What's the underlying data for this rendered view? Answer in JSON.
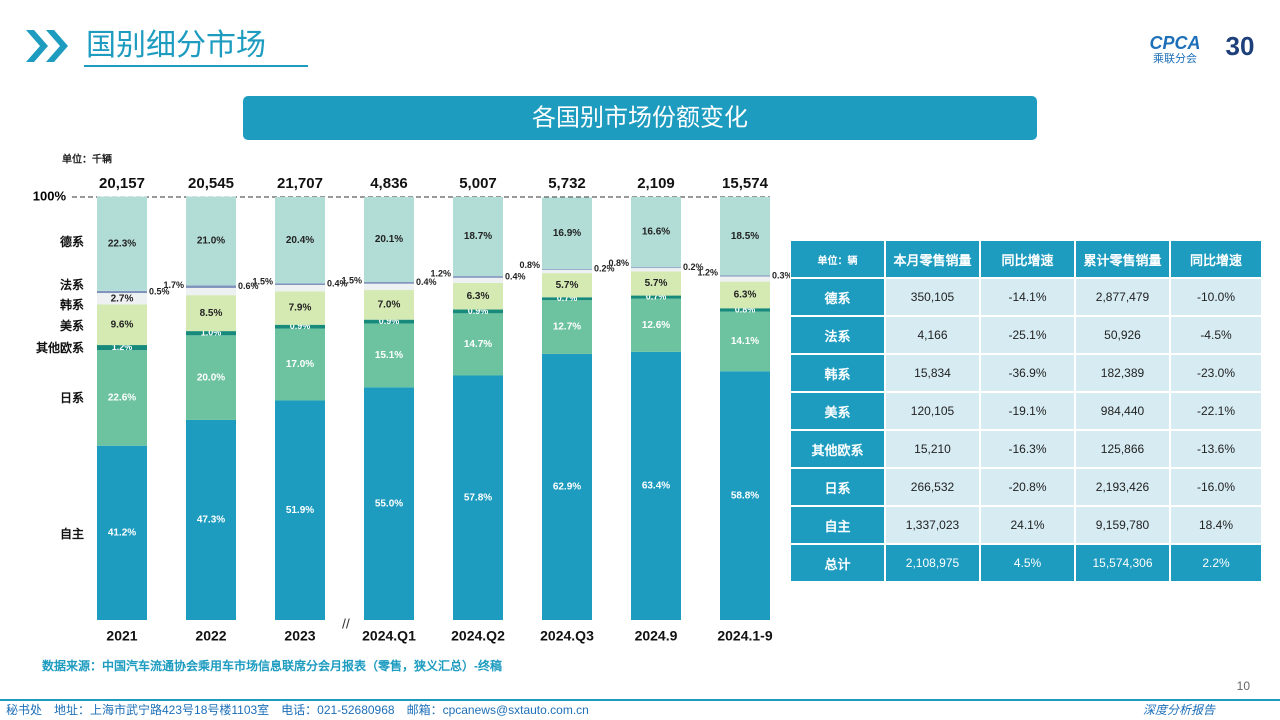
{
  "header": {
    "title": "国别细分市场",
    "logo": "CPCA",
    "logo_sub": "乘联分会",
    "anniversary": "30"
  },
  "chart_data": {
    "type": "stacked_bar",
    "title": "各国别市场份额变化",
    "unit": "单位：千辆",
    "categories": [
      "2021",
      "2022",
      "2023",
      "2024.Q1",
      "2024.Q2",
      "2024.Q3",
      "2024.9",
      "2024.1-9"
    ],
    "ylim": [
      0,
      100
    ],
    "yticks": [
      {
        "value": 100,
        "label": "100%"
      }
    ],
    "totals": {
      "values": [
        20157,
        20545,
        21707,
        4836,
        5007,
        5732,
        2109,
        15574
      ],
      "value_labels": [
        "20,157",
        "20,545",
        "21,707",
        "4,836",
        "5,007",
        "5,732",
        "2,109",
        "15,574"
      ]
    },
    "series": [
      {
        "name": "自主",
        "color": "#1d9cc0",
        "values": [
          41.2,
          47.3,
          51.9,
          55.0,
          57.8,
          62.9,
          63.4,
          58.8
        ],
        "value_labels": [
          "41.2%",
          "47.3%",
          "51.9%",
          "55.0%",
          "57.8%",
          "62.9%",
          "63.4%",
          "58.8%"
        ]
      },
      {
        "name": "日系",
        "color": "#6dc3a0",
        "values": [
          22.6,
          20.0,
          17.0,
          15.1,
          14.7,
          12.7,
          12.6,
          14.1
        ],
        "value_labels": [
          "22.6%",
          "20.0%",
          "17.0%",
          "15.1%",
          "14.7%",
          "12.7%",
          "12.6%",
          "14.1%"
        ]
      },
      {
        "name": "其他欧系",
        "color": "#178a7c",
        "values": [
          1.2,
          1.0,
          0.9,
          0.9,
          0.9,
          0.7,
          0.7,
          0.8
        ],
        "value_labels": [
          "1.2%",
          "1.0%",
          "0.9%",
          "0.9%",
          "0.9%",
          "0.7%",
          "0.7%",
          "0.8%"
        ]
      },
      {
        "name": "美系",
        "color": "#d5e9b3",
        "values": [
          9.6,
          8.5,
          7.9,
          7.0,
          6.3,
          5.7,
          5.7,
          6.3
        ],
        "value_labels": [
          "9.6%",
          "8.5%",
          "7.9%",
          "7.0%",
          "6.3%",
          "5.7%",
          "5.7%",
          "6.3%"
        ]
      },
      {
        "name": "韩系",
        "color": "#eef1f2",
        "values": [
          2.7,
          1.7,
          1.5,
          1.5,
          1.2,
          0.8,
          0.8,
          1.2
        ],
        "value_labels": [
          "2.7%",
          "1.7%",
          "1.5%",
          "1.5%",
          "1.2%",
          "0.8%",
          "0.8%",
          "1.2%"
        ]
      },
      {
        "name": "法系",
        "color": "#7f93bd",
        "values": [
          0.5,
          0.6,
          0.4,
          0.4,
          0.4,
          0.2,
          0.2,
          0.3
        ],
        "value_labels": [
          "0.5%",
          "0.6%",
          "0.4%",
          "0.4%",
          "0.4%",
          "0.2%",
          "0.2%",
          "0.3%"
        ]
      },
      {
        "name": "德系",
        "color": "#b2ddd6",
        "values": [
          22.3,
          21.0,
          20.4,
          20.1,
          18.7,
          16.9,
          16.6,
          18.5
        ],
        "value_labels": [
          "22.3%",
          "21.0%",
          "20.4%",
          "20.1%",
          "18.7%",
          "16.9%",
          "16.6%",
          "18.5%"
        ]
      }
    ]
  },
  "table": {
    "header": [
      "单位：辆",
      "本月零售销量",
      "同比增速",
      "累计零售销量",
      "同比增速"
    ],
    "rows": [
      [
        "德系",
        "350,105",
        "-14.1%",
        "2,877,479",
        "-10.0%"
      ],
      [
        "法系",
        "4,166",
        "-25.1%",
        "50,926",
        "-4.5%"
      ],
      [
        "韩系",
        "15,834",
        "-36.9%",
        "182,389",
        "-23.0%"
      ],
      [
        "美系",
        "120,105",
        "-19.1%",
        "984,440",
        "-22.1%"
      ],
      [
        "其他欧系",
        "15,210",
        "-16.3%",
        "125,866",
        "-13.6%"
      ],
      [
        "日系",
        "266,532",
        "-20.8%",
        "2,193,426",
        "-16.0%"
      ],
      [
        "自主",
        "1,337,023",
        "24.1%",
        "9,159,780",
        "18.4%"
      ],
      [
        "总计",
        "2,108,975",
        "4.5%",
        "15,574,306",
        "2.2%"
      ]
    ]
  },
  "source": "数据来源：中国汽车流通协会乘用车市场信息联席分会月报表（零售，狭义汇总）-终稿",
  "footer": {
    "address": "秘书处　地址：上海市武宁路423号18号楼1103室　电话：021-52680968　邮箱：cpcanews@sxtauto.com.cn",
    "page": "10",
    "report": "深度分析报告"
  }
}
